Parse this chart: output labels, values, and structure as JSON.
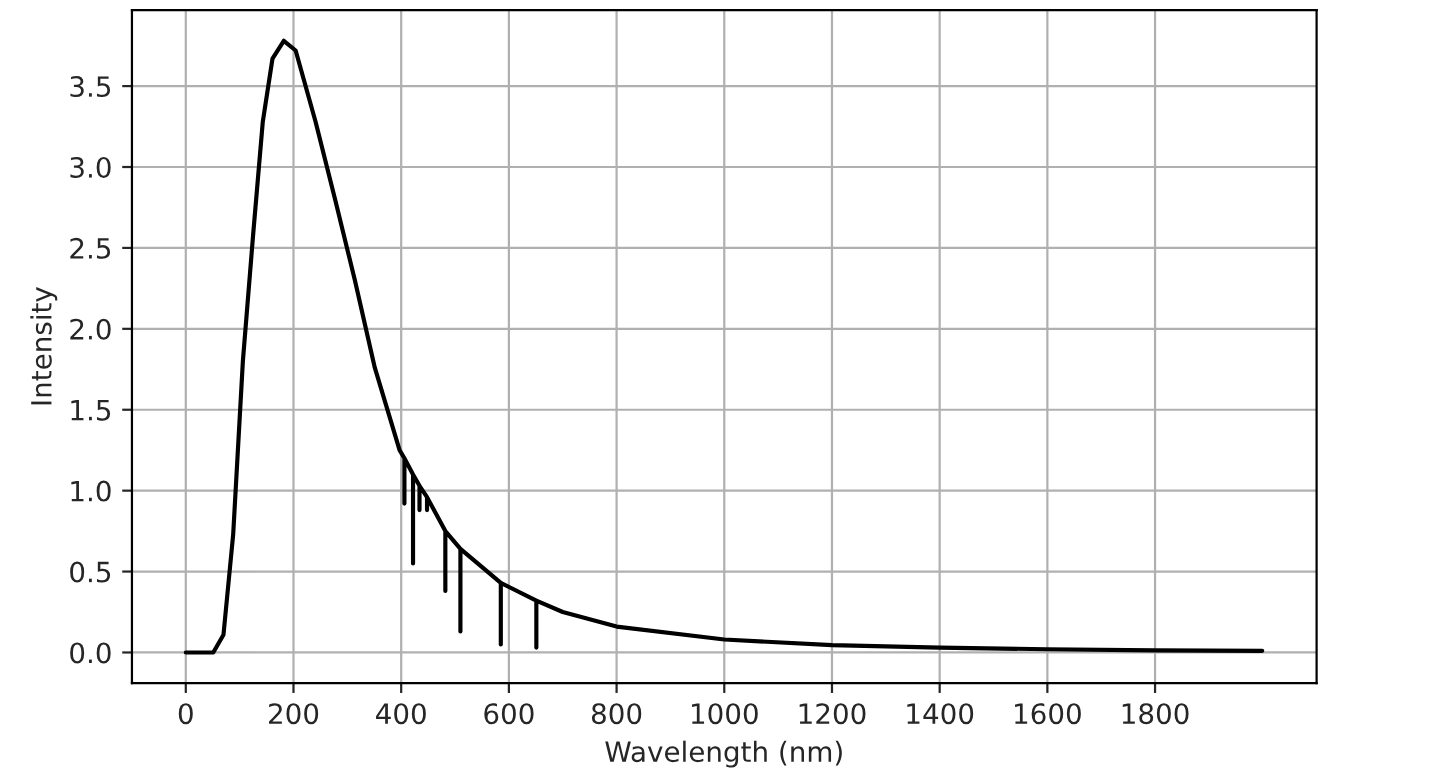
{
  "chart_data": {
    "type": "line",
    "xlabel": "Wavelength (nm)",
    "ylabel": "Intensity",
    "series": [
      {
        "color": "#000000",
        "x": [
          0,
          51,
          70,
          88,
          106,
          125,
          143,
          161,
          182,
          204,
          241,
          278,
          314,
          351,
          397,
          406,
          406,
          406,
          422,
          422,
          422,
          434,
          434,
          434,
          448,
          448,
          448,
          482,
          482,
          482,
          510,
          510,
          510,
          585,
          585,
          585,
          651,
          651,
          651,
          700,
          800,
          1000,
          1200,
          1400,
          1600,
          1800,
          1999
        ],
        "values": [
          0,
          0,
          0.11,
          0.73,
          1.8,
          2.58,
          3.28,
          3.67,
          3.78,
          3.72,
          3.28,
          2.79,
          2.3,
          1.76,
          1.25,
          1.2,
          0.92,
          1.2,
          1.1,
          0.55,
          1.1,
          1.03,
          0.88,
          1.03,
          0.96,
          0.88,
          0.96,
          0.75,
          0.38,
          0.75,
          0.64,
          0.13,
          0.64,
          0.43,
          0.05,
          0.43,
          0.32,
          0.03,
          0.32,
          0.25,
          0.16,
          0.08,
          0.045,
          0.03,
          0.02,
          0.013,
          0.01
        ]
      }
    ],
    "xlim": [
      -100,
      2100
    ],
    "ylim": [
      -0.19,
      3.97
    ],
    "xticks": [
      0,
      200,
      400,
      600,
      800,
      1000,
      1200,
      1400,
      1600,
      1800
    ],
    "yticks": [
      {
        "value": 0,
        "label": "0.0"
      },
      {
        "value": 0.5,
        "label": "0.5"
      },
      {
        "value": 1,
        "label": "1.0"
      },
      {
        "value": 1.5,
        "label": "1.5"
      },
      {
        "value": 2,
        "label": "2.0"
      },
      {
        "value": 2.5,
        "label": "2.5"
      },
      {
        "value": 3,
        "label": "3.0"
      },
      {
        "value": 3.5,
        "label": "3.5"
      }
    ],
    "grid": true
  }
}
